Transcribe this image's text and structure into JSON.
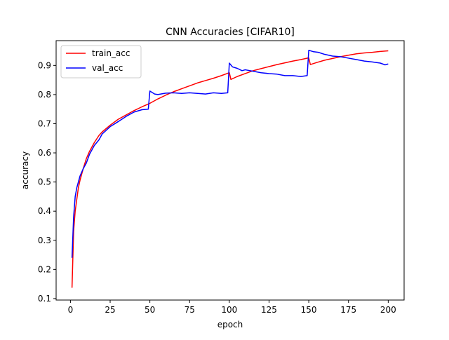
{
  "chart_data": {
    "type": "line",
    "title": "CNN Accuracies [CIFAR10]",
    "xlabel": "epoch",
    "ylabel": "accuracy",
    "xlim": [
      -9,
      210
    ],
    "ylim": [
      0.095,
      0.985
    ],
    "xticks": [
      0,
      25,
      50,
      75,
      100,
      125,
      150,
      175,
      200
    ],
    "xtick_labels": [
      "0",
      "25",
      "50",
      "75",
      "100",
      "125",
      "150",
      "175",
      "200"
    ],
    "yticks": [
      0.1,
      0.2,
      0.3,
      0.4,
      0.5,
      0.6,
      0.7,
      0.8,
      0.9
    ],
    "ytick_labels": [
      "0.1",
      "0.2",
      "0.3",
      "0.4",
      "0.5",
      "0.6",
      "0.7",
      "0.8",
      "0.9"
    ],
    "grid": false,
    "legend_position": "top-left",
    "series": [
      {
        "name": "train_acc",
        "color": "#ff0000",
        "points": [
          [
            1,
            0.137
          ],
          [
            2,
            0.33
          ],
          [
            3,
            0.4
          ],
          [
            4,
            0.44
          ],
          [
            5,
            0.48
          ],
          [
            6,
            0.505
          ],
          [
            8,
            0.545
          ],
          [
            10,
            0.58
          ],
          [
            12,
            0.605
          ],
          [
            15,
            0.635
          ],
          [
            18,
            0.66
          ],
          [
            20,
            0.672
          ],
          [
            25,
            0.695
          ],
          [
            30,
            0.715
          ],
          [
            35,
            0.73
          ],
          [
            40,
            0.745
          ],
          [
            45,
            0.758
          ],
          [
            50,
            0.77
          ],
          [
            55,
            0.785
          ],
          [
            60,
            0.798
          ],
          [
            65,
            0.81
          ],
          [
            70,
            0.82
          ],
          [
            75,
            0.83
          ],
          [
            80,
            0.84
          ],
          [
            85,
            0.848
          ],
          [
            90,
            0.856
          ],
          [
            95,
            0.865
          ],
          [
            100,
            0.875
          ],
          [
            101,
            0.852
          ],
          [
            105,
            0.862
          ],
          [
            110,
            0.872
          ],
          [
            115,
            0.882
          ],
          [
            120,
            0.889
          ],
          [
            125,
            0.896
          ],
          [
            130,
            0.903
          ],
          [
            135,
            0.909
          ],
          [
            140,
            0.915
          ],
          [
            145,
            0.92
          ],
          [
            150,
            0.926
          ],
          [
            151,
            0.903
          ],
          [
            155,
            0.91
          ],
          [
            160,
            0.918
          ],
          [
            165,
            0.924
          ],
          [
            170,
            0.93
          ],
          [
            175,
            0.935
          ],
          [
            180,
            0.94
          ],
          [
            185,
            0.943
          ],
          [
            190,
            0.945
          ],
          [
            195,
            0.948
          ],
          [
            200,
            0.95
          ]
        ]
      },
      {
        "name": "val_acc",
        "color": "#0000ff",
        "points": [
          [
            1,
            0.24
          ],
          [
            2,
            0.38
          ],
          [
            3,
            0.45
          ],
          [
            4,
            0.48
          ],
          [
            5,
            0.5
          ],
          [
            6,
            0.52
          ],
          [
            8,
            0.545
          ],
          [
            10,
            0.565
          ],
          [
            12,
            0.595
          ],
          [
            15,
            0.625
          ],
          [
            18,
            0.645
          ],
          [
            20,
            0.665
          ],
          [
            25,
            0.69
          ],
          [
            30,
            0.707
          ],
          [
            35,
            0.725
          ],
          [
            40,
            0.74
          ],
          [
            45,
            0.748
          ],
          [
            49,
            0.75
          ],
          [
            50,
            0.812
          ],
          [
            53,
            0.802
          ],
          [
            55,
            0.8
          ],
          [
            60,
            0.805
          ],
          [
            65,
            0.806
          ],
          [
            70,
            0.804
          ],
          [
            75,
            0.806
          ],
          [
            80,
            0.804
          ],
          [
            85,
            0.802
          ],
          [
            90,
            0.806
          ],
          [
            95,
            0.804
          ],
          [
            99,
            0.806
          ],
          [
            100,
            0.908
          ],
          [
            102,
            0.895
          ],
          [
            105,
            0.89
          ],
          [
            108,
            0.882
          ],
          [
            110,
            0.885
          ],
          [
            115,
            0.88
          ],
          [
            120,
            0.875
          ],
          [
            125,
            0.872
          ],
          [
            130,
            0.87
          ],
          [
            135,
            0.865
          ],
          [
            140,
            0.865
          ],
          [
            145,
            0.862
          ],
          [
            149,
            0.865
          ],
          [
            150,
            0.952
          ],
          [
            153,
            0.947
          ],
          [
            156,
            0.945
          ],
          [
            160,
            0.938
          ],
          [
            165,
            0.932
          ],
          [
            170,
            0.93
          ],
          [
            175,
            0.925
          ],
          [
            180,
            0.92
          ],
          [
            185,
            0.915
          ],
          [
            190,
            0.912
          ],
          [
            195,
            0.908
          ],
          [
            198,
            0.902
          ],
          [
            200,
            0.905
          ]
        ]
      }
    ]
  }
}
